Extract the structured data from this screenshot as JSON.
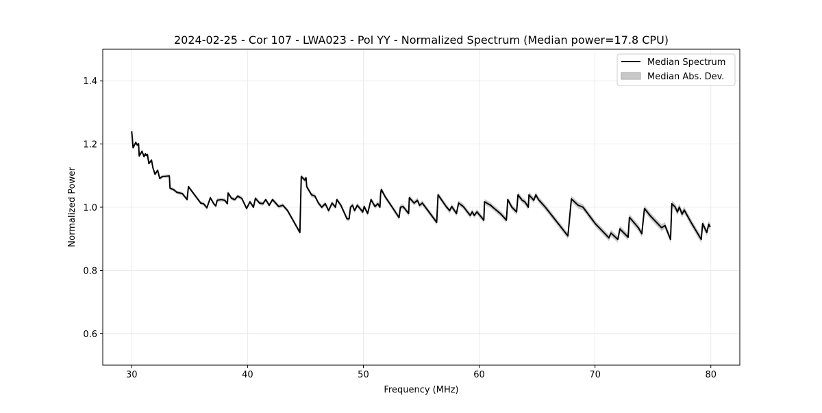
{
  "chart_data": {
    "type": "line",
    "title": "2024-02-25 - Cor 107 - LWA023 - Pol YY - Normalized Spectrum (Median power=17.8 CPU)",
    "xlabel": "Frequency (MHz)",
    "ylabel": "Normalized Power",
    "xlim": [
      27.5,
      82.5
    ],
    "ylim": [
      0.5,
      1.5
    ],
    "xticks": [
      30,
      40,
      50,
      60,
      70,
      80
    ],
    "yticks": [
      0.6,
      0.8,
      1.0,
      1.2,
      1.4
    ],
    "xtick_labels": [
      "30",
      "40",
      "50",
      "60",
      "70",
      "80"
    ],
    "ytick_labels": [
      "0.6",
      "0.8",
      "1.0",
      "1.2",
      "1.4"
    ],
    "grid": true,
    "legend_position": "top-right",
    "legend": [
      "Median Spectrum",
      "Median Abs. Dev."
    ],
    "series": [
      {
        "name": "Median Spectrum",
        "color": "#000000",
        "x": [
          30.0,
          30.12,
          30.35,
          30.47,
          30.59,
          30.65,
          30.89,
          31.06,
          31.18,
          31.24,
          31.36,
          31.48,
          31.71,
          31.83,
          32.01,
          32.24,
          32.42,
          32.66,
          33.25,
          33.31,
          33.6,
          33.9,
          34.37,
          34.78,
          34.9,
          35.08,
          35.96,
          36.2,
          36.49,
          36.79,
          37.08,
          37.26,
          37.38,
          37.73,
          38.03,
          38.26,
          38.32,
          38.62,
          38.91,
          39.15,
          39.5,
          39.92,
          40.21,
          40.51,
          40.68,
          41.04,
          41.33,
          41.57,
          41.87,
          42.16,
          42.69,
          43.05,
          43.46,
          44.52,
          44.64,
          44.94,
          45.05,
          45.11,
          45.53,
          45.82,
          46.12,
          46.41,
          46.71,
          47.0,
          47.3,
          47.59,
          47.71,
          48.06,
          48.59,
          48.77,
          48.89,
          49.07,
          49.24,
          49.48,
          49.95,
          50.07,
          50.37,
          50.66,
          51.01,
          51.25,
          51.43,
          51.49,
          51.55,
          51.9,
          52.49,
          53.08,
          53.2,
          53.43,
          53.91,
          53.97,
          54.38,
          54.67,
          54.85,
          55.09,
          55.44,
          56.33,
          56.45,
          57.15,
          57.45,
          57.63,
          58.04,
          58.22,
          58.63,
          59.22,
          59.4,
          59.57,
          59.81,
          60.4,
          60.46,
          60.99,
          61.17,
          61.88,
          62.35,
          62.47,
          62.82,
          63.23,
          63.35,
          63.71,
          63.94,
          64.24,
          64.3,
          64.71,
          64.89,
          65.12,
          65.71,
          67.66,
          67.96,
          68.55,
          68.96,
          70.02,
          71.2,
          71.38,
          71.97,
          72.15,
          72.86,
          72.97,
          73.74,
          74.04,
          74.27,
          74.74,
          75.75,
          76.04,
          76.52,
          76.63,
          76.93,
          77.11,
          77.28,
          77.52,
          77.7,
          78.29,
          79.17,
          79.29,
          79.65,
          79.82,
          79.94
        ],
        "y": [
          1.24,
          1.188,
          1.205,
          1.197,
          1.201,
          1.162,
          1.177,
          1.16,
          1.169,
          1.164,
          1.167,
          1.138,
          1.149,
          1.125,
          1.104,
          1.117,
          1.091,
          1.097,
          1.099,
          1.06,
          1.056,
          1.047,
          1.043,
          1.024,
          1.065,
          1.056,
          1.013,
          1.011,
          0.998,
          1.03,
          1.011,
          1.004,
          1.022,
          1.024,
          1.022,
          1.011,
          1.045,
          1.028,
          1.024,
          1.035,
          1.028,
          0.996,
          1.017,
          1.0,
          1.028,
          1.013,
          1.011,
          1.024,
          1.006,
          1.024,
          1.002,
          1.006,
          0.989,
          0.92,
          1.097,
          1.086,
          1.093,
          1.065,
          1.039,
          1.035,
          1.013,
          1.0,
          1.011,
          0.989,
          1.013,
          1.0,
          1.024,
          1.006,
          0.963,
          0.963,
          1.0,
          1.006,
          0.989,
          1.006,
          0.985,
          1.002,
          0.98,
          1.024,
          1.002,
          1.011,
          1.0,
          1.043,
          1.056,
          1.032,
          1.0,
          0.967,
          1.0,
          1.002,
          0.98,
          1.03,
          1.013,
          1.022,
          1.006,
          1.013,
          0.996,
          0.952,
          1.039,
          1.002,
          0.989,
          1.002,
          0.98,
          1.013,
          1.002,
          0.974,
          0.985,
          0.974,
          0.985,
          0.959,
          1.017,
          1.006,
          1.0,
          0.978,
          0.959,
          1.024,
          1.0,
          0.985,
          1.039,
          1.022,
          1.017,
          1.0,
          1.039,
          1.022,
          1.039,
          1.024,
          1.0,
          0.909,
          1.026,
          1.006,
          1.0,
          0.948,
          0.903,
          0.918,
          0.898,
          0.931,
          0.905,
          0.968,
          0.935,
          0.916,
          0.996,
          0.974,
          0.935,
          0.942,
          0.898,
          1.011,
          1.0,
          0.985,
          1.0,
          0.978,
          0.991,
          0.952,
          0.898,
          0.948,
          0.92,
          0.946,
          0.937
        ]
      },
      {
        "name": "Median Abs. Dev.",
        "color": "#c8c8c8",
        "band_half_width_approx": 0.008
      }
    ]
  }
}
